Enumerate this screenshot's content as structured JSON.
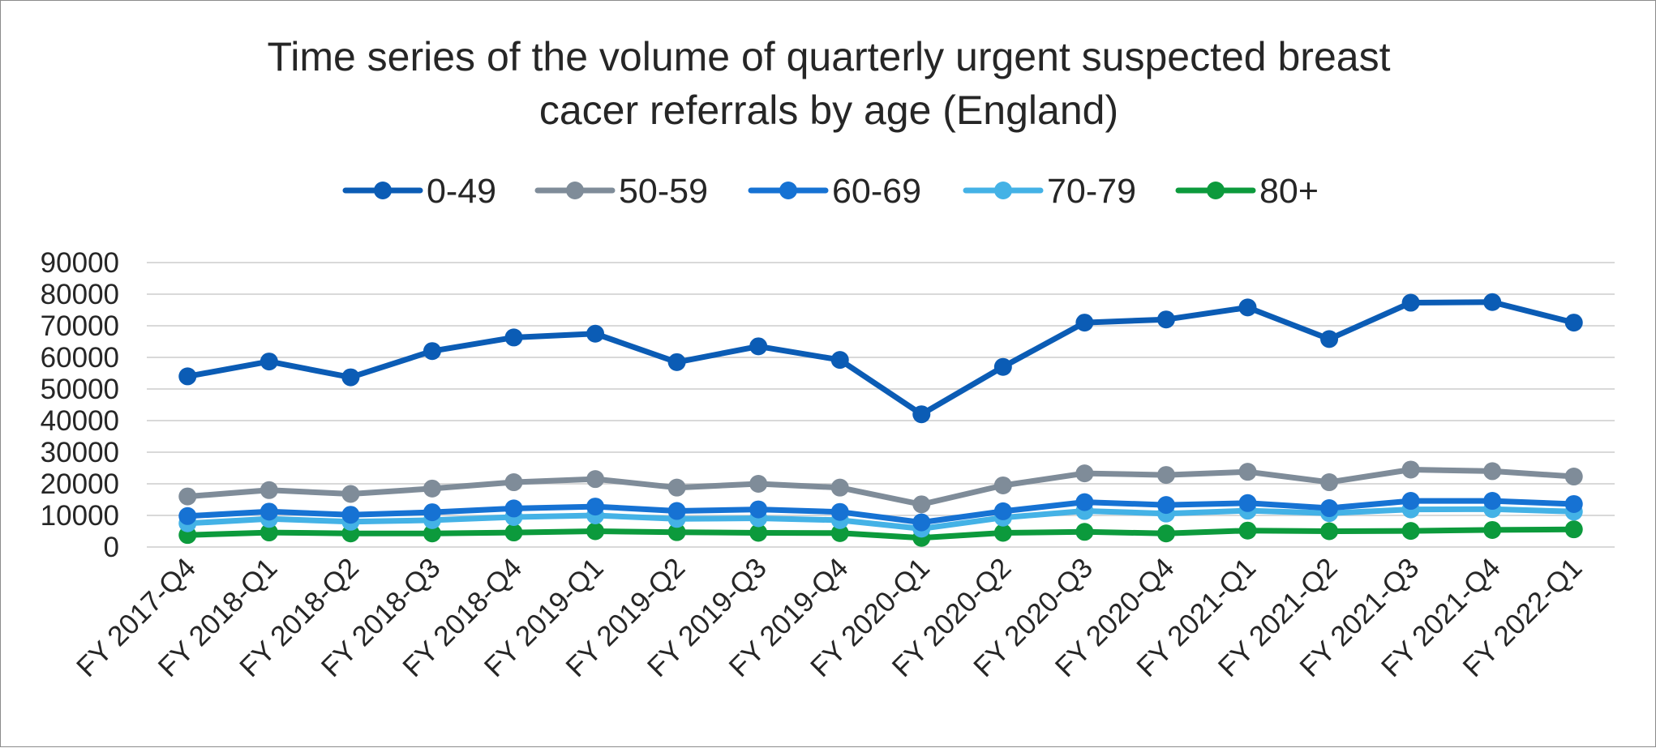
{
  "chart_data": {
    "type": "line",
    "title": "Time series of the volume of quarterly urgent suspected breast cacer referrals by age (England)",
    "title_lines": [
      "Time series of the volume of quarterly urgent suspected breast",
      "cacer referrals by age (England)"
    ],
    "xlabel": "",
    "ylabel": "",
    "ylim": [
      0,
      90000
    ],
    "y_ticks": [
      "0",
      "10000",
      "20000",
      "30000",
      "40000",
      "50000",
      "60000",
      "70000",
      "80000",
      "90000"
    ],
    "y_tick_values": [
      0,
      10000,
      20000,
      30000,
      40000,
      50000,
      60000,
      70000,
      80000,
      90000
    ],
    "grid": true,
    "legend_position": "top",
    "categories": [
      "FY 2017-Q4",
      "FY 2018-Q1",
      "FY 2018-Q2",
      "FY 2018-Q3",
      "FY 2018-Q4",
      "FY 2019-Q1",
      "FY 2019-Q2",
      "FY 2019-Q3",
      "FY 2019-Q4",
      "FY 2020-Q1",
      "FY 2020-Q2",
      "FY 2020-Q3",
      "FY 2020-Q4",
      "FY 2021-Q1",
      "FY 2021-Q2",
      "FY 2021-Q3",
      "FY 2021-Q4",
      "FY 2022-Q1"
    ],
    "series": [
      {
        "name": "0-49",
        "color": "#0b5cb5",
        "values": [
          54000,
          58700,
          53700,
          62000,
          66300,
          67500,
          58500,
          63500,
          59200,
          42000,
          57000,
          71000,
          72000,
          75800,
          65800,
          77300,
          77500,
          71000
        ]
      },
      {
        "name": "50-59",
        "color": "#7f8c99",
        "values": [
          16000,
          18000,
          16800,
          18500,
          20500,
          21500,
          18800,
          20000,
          18800,
          13500,
          19500,
          23300,
          22800,
          23800,
          20500,
          24500,
          24000,
          22300
        ]
      },
      {
        "name": "60-69",
        "color": "#1672d3",
        "values": [
          9800,
          11200,
          10200,
          11000,
          12200,
          12800,
          11400,
          11900,
          11100,
          7800,
          11300,
          14200,
          13300,
          13900,
          12300,
          14600,
          14600,
          13600
        ]
      },
      {
        "name": "70-79",
        "color": "#44b2e6",
        "values": [
          7500,
          8900,
          8000,
          8500,
          9500,
          10000,
          8900,
          9100,
          8500,
          5800,
          9300,
          11400,
          10600,
          11500,
          10700,
          11900,
          12000,
          11200
        ]
      },
      {
        "name": "80+",
        "color": "#0c9a3c",
        "values": [
          3800,
          4600,
          4300,
          4300,
          4600,
          5000,
          4700,
          4500,
          4400,
          2900,
          4500,
          4800,
          4300,
          5200,
          5000,
          5100,
          5400,
          5600
        ]
      }
    ]
  }
}
